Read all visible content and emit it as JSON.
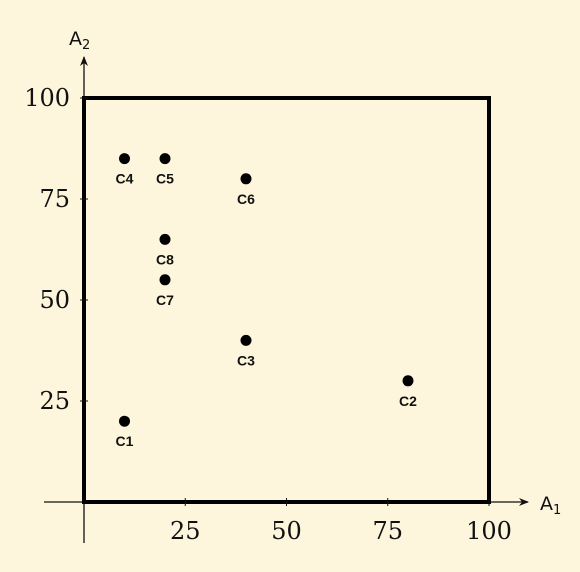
{
  "chart_data": {
    "type": "scatter",
    "title": "",
    "xlabel": {
      "base": "A",
      "sub": "1"
    },
    "ylabel": {
      "base": "A",
      "sub": "2"
    },
    "xlim": [
      0,
      100
    ],
    "ylim": [
      0,
      100
    ],
    "xticks": [
      25,
      50,
      75,
      100
    ],
    "yticks": [
      25,
      50,
      75,
      100
    ],
    "grid": false,
    "bounding_box": true,
    "marker_color": "#000000",
    "points": [
      {
        "label": "C1",
        "x": 10,
        "y": 20
      },
      {
        "label": "C2",
        "x": 80,
        "y": 30
      },
      {
        "label": "C3",
        "x": 40,
        "y": 40
      },
      {
        "label": "C4",
        "x": 10,
        "y": 85
      },
      {
        "label": "C5",
        "x": 20,
        "y": 85
      },
      {
        "label": "C6",
        "x": 40,
        "y": 80
      },
      {
        "label": "C7",
        "x": 20,
        "y": 55
      },
      {
        "label": "C8",
        "x": 20,
        "y": 65
      }
    ]
  }
}
